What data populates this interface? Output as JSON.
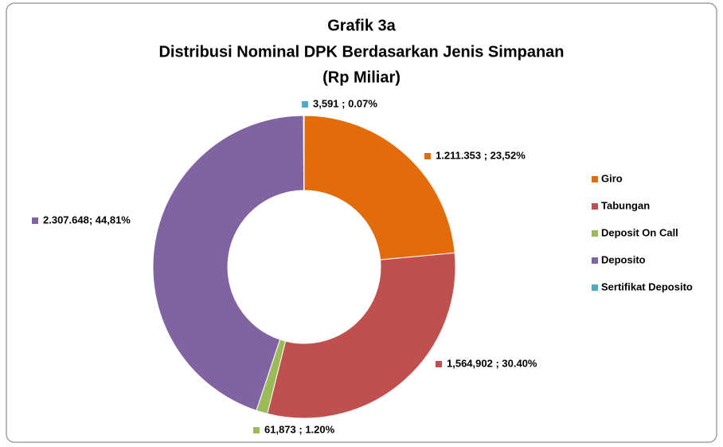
{
  "chart_data": {
    "type": "donut",
    "title": [
      "Grafik 3a",
      "Distribusi Nominal  DPK Berdasarkan Jenis Simpanan",
      "(Rp Miliar)"
    ],
    "categories": [
      "Giro",
      "Tabungan",
      "Deposit On Call",
      "Deposito",
      "Sertifikat Deposito"
    ],
    "values": [
      23.52,
      30.4,
      1.2,
      44.81,
      0.07
    ],
    "value_labels": [
      "1.211.353 ; 23,52%",
      "1,564,902 ; 30.40%",
      "61,873 ; 1.20%",
      "2.307.648; 44,81%",
      "3,591 ; 0.07%"
    ],
    "colors": [
      "#e36c0a",
      "#c0504d",
      "#9bbb59",
      "#8064a2",
      "#4bacc6"
    ],
    "legend": "right"
  }
}
